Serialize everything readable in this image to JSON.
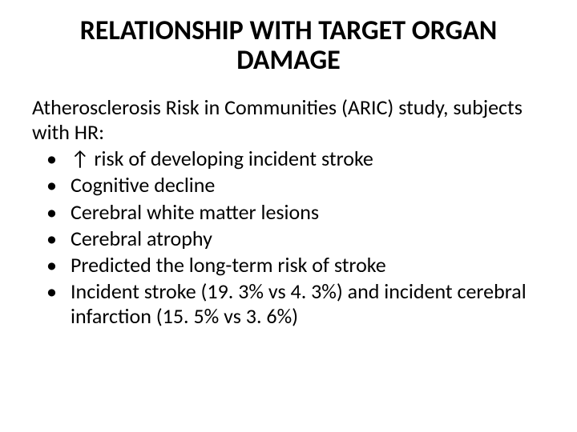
{
  "title": "RELATIONSHIP WITH TARGET ORGAN DAMAGE",
  "intro": "Atherosclerosis Risk in Communities (ARIC) study, subjects with HR:",
  "bullets": [
    "↑ risk of developing incident stroke",
    "Cognitive decline",
    "Cerebral white matter lesions",
    "Cerebral atrophy",
    "Predicted the long-term risk of stroke",
    "Incident stroke (19. 3% vs 4. 3%) and incident cerebral infarction (15. 5% vs 3. 6%)"
  ],
  "styles": {
    "title_fontsize": 34,
    "body_fontsize": 26,
    "title_color": "#000000",
    "body_color": "#000000",
    "background_color": "#ffffff",
    "font_family": "Calibri, Arial, sans-serif"
  }
}
